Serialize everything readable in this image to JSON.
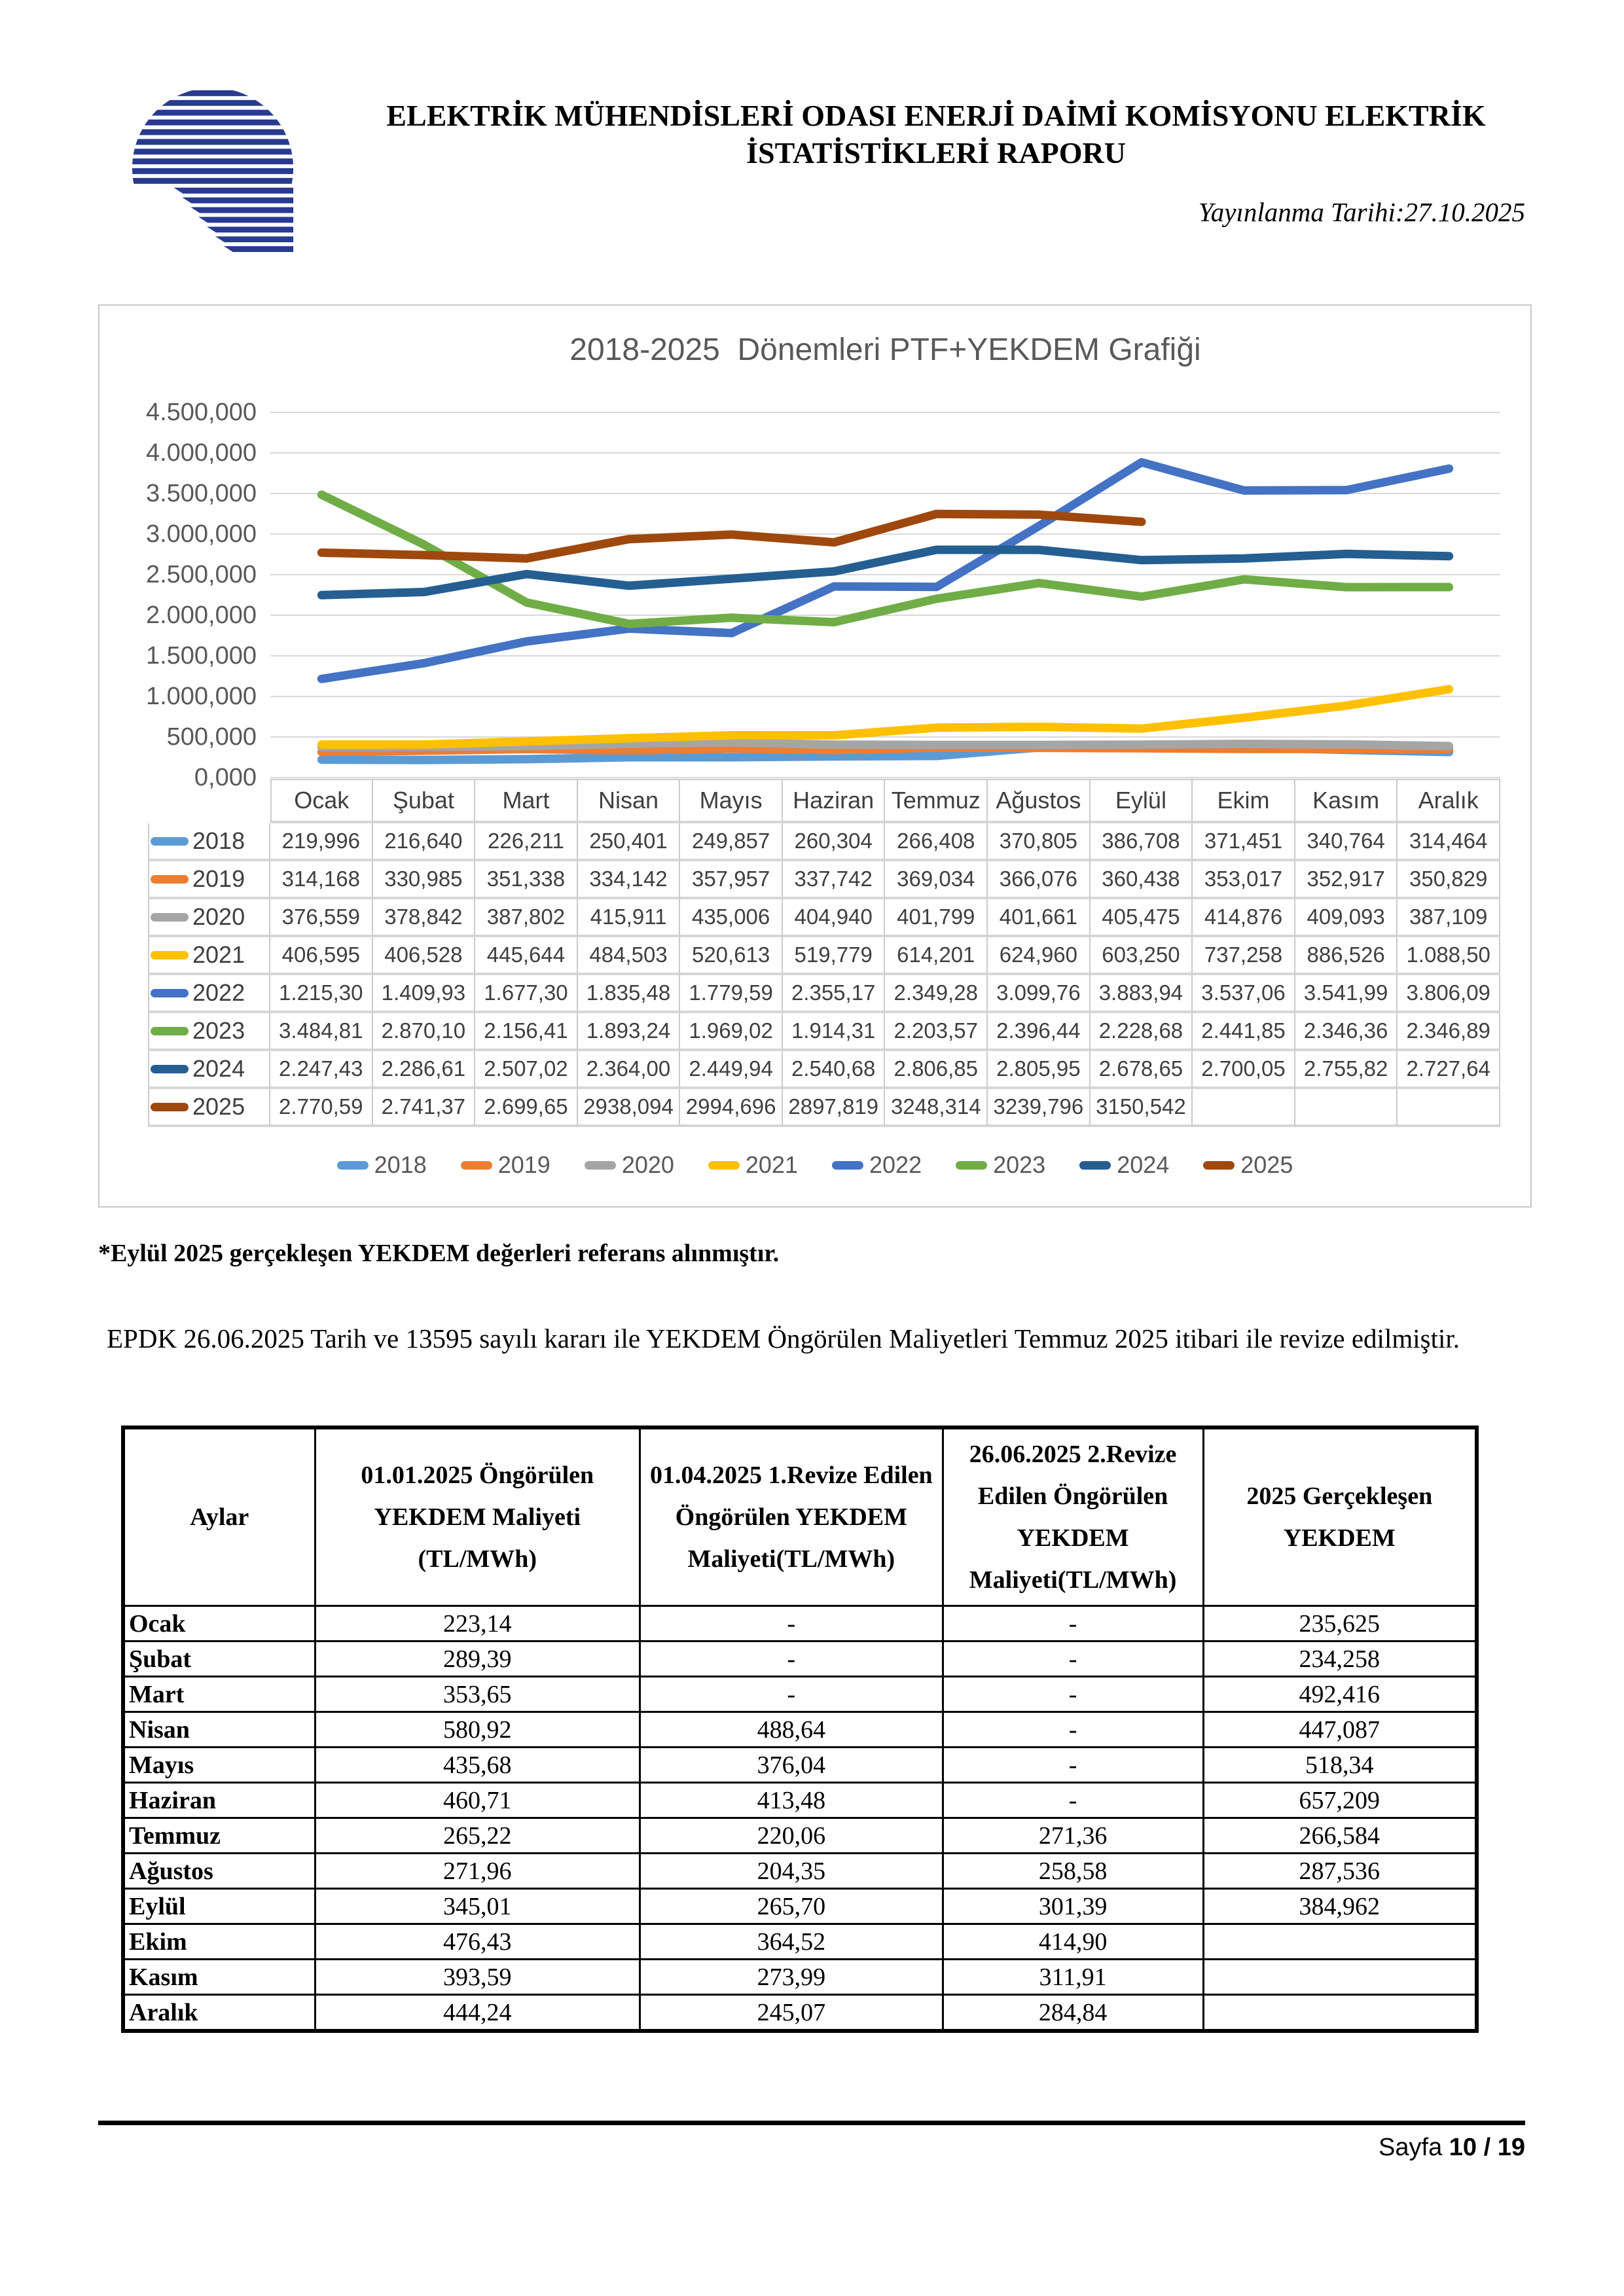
{
  "header": {
    "title_line1": "ELEKTRİK MÜHENDİSLERİ ODASI ENERJİ DAİMİ KOMİSYONU ELEKTRİK",
    "title_line2": "İSTATİSTİKLERİ RAPORU",
    "published": "Yayınlanma Tarihi:27.10.2025",
    "logo_color": "#293a90"
  },
  "chart": {
    "title": "2018-2025  Dönemleri PTF+YEKDEM Grafiği",
    "y_ticks": [
      "4.500,000",
      "4.000,000",
      "3.500,000",
      "3.000,000",
      "2.500,000",
      "2.000,000",
      "1.500,000",
      "1.000,000",
      "500,000",
      "0,000"
    ],
    "months": [
      "Ocak",
      "Şubat",
      "Mart",
      "Nisan",
      "Mayıs",
      "Haziran",
      "Temmuz",
      "Ağustos",
      "Eylül",
      "Ekim",
      "Kasım",
      "Aralık"
    ],
    "series": [
      {
        "name": "2018",
        "color": "#5B9BD5",
        "display": [
          "219,996",
          "216,640",
          "226,211",
          "250,401",
          "249,857",
          "260,304",
          "266,408",
          "370,805",
          "386,708",
          "371,451",
          "340,764",
          "314,464"
        ]
      },
      {
        "name": "2019",
        "color": "#ED7D31",
        "display": [
          "314,168",
          "330,985",
          "351,338",
          "334,142",
          "357,957",
          "337,742",
          "369,034",
          "366,076",
          "360,438",
          "353,017",
          "352,917",
          "350,829"
        ]
      },
      {
        "name": "2020",
        "color": "#A5A5A5",
        "display": [
          "376,559",
          "378,842",
          "387,802",
          "415,911",
          "435,006",
          "404,940",
          "401,799",
          "401,661",
          "405,475",
          "414,876",
          "409,093",
          "387,109"
        ]
      },
      {
        "name": "2021",
        "color": "#FFC000",
        "display": [
          "406,595",
          "406,528",
          "445,644",
          "484,503",
          "520,613",
          "519,779",
          "614,201",
          "624,960",
          "603,250",
          "737,258",
          "886,526",
          "1.088,50"
        ]
      },
      {
        "name": "2022",
        "color": "#4472C4",
        "display": [
          "1.215,30",
          "1.409,93",
          "1.677,30",
          "1.835,48",
          "1.779,59",
          "2.355,17",
          "2.349,28",
          "3.099,76",
          "3.883,94",
          "3.537,06",
          "3.541,99",
          "3.806,09"
        ]
      },
      {
        "name": "2023",
        "color": "#70AD47",
        "display": [
          "3.484,81",
          "2.870,10",
          "2.156,41",
          "1.893,24",
          "1.969,02",
          "1.914,31",
          "2.203,57",
          "2.396,44",
          "2.228,68",
          "2.441,85",
          "2.346,36",
          "2.346,89"
        ]
      },
      {
        "name": "2024",
        "color": "#255E91",
        "display": [
          "2.247,43",
          "2.286,61",
          "2.507,02",
          "2.364,00",
          "2.449,94",
          "2.540,68",
          "2.806,85",
          "2.805,95",
          "2.678,65",
          "2.700,05",
          "2.755,82",
          "2.727,64"
        ]
      },
      {
        "name": "2025",
        "color": "#9E480E",
        "display": [
          "2.770,59",
          "2.741,37",
          "2.699,65",
          "2938,094",
          "2994,696",
          "2897,819",
          "3248,314",
          "3239,796",
          "3150,542",
          "",
          "",
          ""
        ]
      }
    ]
  },
  "chart_data": {
    "type": "line",
    "title": "2018-2025  Dönemleri PTF+YEKDEM Grafiği",
    "categories": [
      "Ocak",
      "Şubat",
      "Mart",
      "Nisan",
      "Mayıs",
      "Haziran",
      "Temmuz",
      "Ağustos",
      "Eylül",
      "Ekim",
      "Kasım",
      "Aralık"
    ],
    "ylim": [
      0,
      4500
    ],
    "grid": true,
    "legend_position": "bottom",
    "series": [
      {
        "name": "2018",
        "values": [
          219.996,
          216.64,
          226.211,
          250.401,
          249.857,
          260.304,
          266.408,
          370.805,
          386.708,
          371.451,
          340.764,
          314.464
        ]
      },
      {
        "name": "2019",
        "values": [
          314.168,
          330.985,
          351.338,
          334.142,
          357.957,
          337.742,
          369.034,
          366.076,
          360.438,
          353.017,
          352.917,
          350.829
        ]
      },
      {
        "name": "2020",
        "values": [
          376.559,
          378.842,
          387.802,
          415.911,
          435.006,
          404.94,
          401.799,
          401.661,
          405.475,
          414.876,
          409.093,
          387.109
        ]
      },
      {
        "name": "2021",
        "values": [
          406.595,
          406.528,
          445.644,
          484.503,
          520.613,
          519.779,
          614.201,
          624.96,
          603.25,
          737.258,
          886.526,
          1088.5
        ]
      },
      {
        "name": "2022",
        "values": [
          1215.3,
          1409.93,
          1677.3,
          1835.48,
          1779.59,
          2355.17,
          2349.28,
          3099.76,
          3883.94,
          3537.06,
          3541.99,
          3806.09
        ]
      },
      {
        "name": "2023",
        "values": [
          3484.81,
          2870.1,
          2156.41,
          1893.24,
          1969.02,
          1914.31,
          2203.57,
          2396.44,
          2228.68,
          2441.85,
          2346.36,
          2346.89
        ]
      },
      {
        "name": "2024",
        "values": [
          2247.43,
          2286.61,
          2507.02,
          2364.0,
          2449.94,
          2540.68,
          2806.85,
          2805.95,
          2678.65,
          2700.05,
          2755.82,
          2727.64
        ]
      },
      {
        "name": "2025",
        "values": [
          2770.59,
          2741.37,
          2699.65,
          2938.094,
          2994.696,
          2897.819,
          3248.314,
          3239.796,
          3150.542,
          null,
          null,
          null
        ]
      }
    ]
  },
  "note": "*Eylül 2025 gerçekleşen YEKDEM değerleri referans alınmıştır.",
  "paragraph": "EPDK 26.06.2025 Tarih ve 13595 sayılı kararı ile YEKDEM Öngörülen Maliyetleri Temmuz 2025 itibari ile revize edilmiştir.",
  "cost_table": {
    "headers": [
      "Aylar",
      "01.01.2025 Öngörülen YEKDEM Maliyeti (TL/MWh)",
      "01.04.2025 1.Revize Edilen Öngörülen YEKDEM Maliyeti(TL/MWh)",
      "26.06.2025 2.Revize Edilen Öngörülen YEKDEM Maliyeti(TL/MWh)",
      "2025 Gerçekleşen YEKDEM"
    ],
    "rows": [
      [
        "Ocak",
        "223,14",
        "-",
        "-",
        "235,625"
      ],
      [
        "Şubat",
        "289,39",
        "-",
        "-",
        "234,258"
      ],
      [
        "Mart",
        "353,65",
        "-",
        "-",
        "492,416"
      ],
      [
        "Nisan",
        "580,92",
        "488,64",
        "-",
        "447,087"
      ],
      [
        "Mayıs",
        "435,68",
        "376,04",
        "-",
        "518,34"
      ],
      [
        "Haziran",
        "460,71",
        "413,48",
        "-",
        "657,209"
      ],
      [
        "Temmuz",
        "265,22",
        "220,06",
        "271,36",
        "266,584"
      ],
      [
        "Ağustos",
        "271,96",
        "204,35",
        "258,58",
        "287,536"
      ],
      [
        "Eylül",
        "345,01",
        "265,70",
        "301,39",
        "384,962"
      ],
      [
        "Ekim",
        "476,43",
        "364,52",
        "414,90",
        ""
      ],
      [
        "Kasım",
        "393,59",
        "273,99",
        "311,91",
        ""
      ],
      [
        "Aralık",
        "444,24",
        "245,07",
        "284,84",
        ""
      ]
    ]
  },
  "footer": {
    "label": "Sayfa",
    "page": "10 / 19"
  }
}
